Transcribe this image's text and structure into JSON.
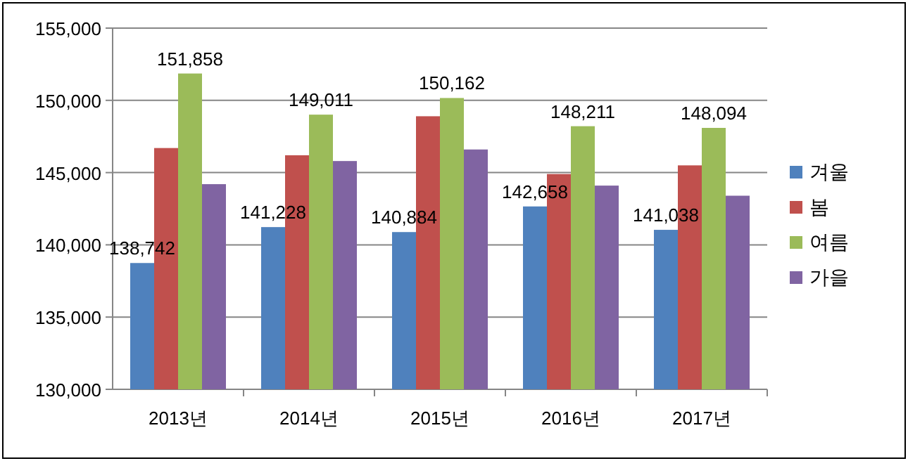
{
  "chart_data": {
    "type": "bar",
    "categories": [
      "2013년",
      "2014년",
      "2015년",
      "2016년",
      "2017년"
    ],
    "series": [
      {
        "name": "겨울",
        "color": "#4f81bd",
        "values": [
          138742,
          141228,
          140884,
          142658,
          141038
        ],
        "value_labels": [
          "138,742",
          "141,228",
          "140,884",
          "142,658",
          "141,038"
        ]
      },
      {
        "name": "봄",
        "color": "#c0504d",
        "values": [
          146700,
          146200,
          148900,
          144900,
          145500
        ]
      },
      {
        "name": "여름",
        "color": "#9bbb59",
        "values": [
          151858,
          149011,
          150162,
          148211,
          148094
        ],
        "value_labels": [
          "151,858",
          "149,011",
          "150,162",
          "148,211",
          "148,094"
        ]
      },
      {
        "name": "가을",
        "color": "#8064a2",
        "values": [
          144200,
          145800,
          146600,
          144100,
          143400
        ]
      }
    ],
    "ylim": [
      130000,
      155000
    ],
    "yticks": [
      {
        "value": 130000,
        "label": "130,000"
      },
      {
        "value": 135000,
        "label": "135,000"
      },
      {
        "value": 140000,
        "label": "140,000"
      },
      {
        "value": 145000,
        "label": "145,000"
      },
      {
        "value": 150000,
        "label": "150,000"
      },
      {
        "value": 155000,
        "label": "155,000"
      }
    ],
    "grid": "y",
    "legend": "right"
  }
}
